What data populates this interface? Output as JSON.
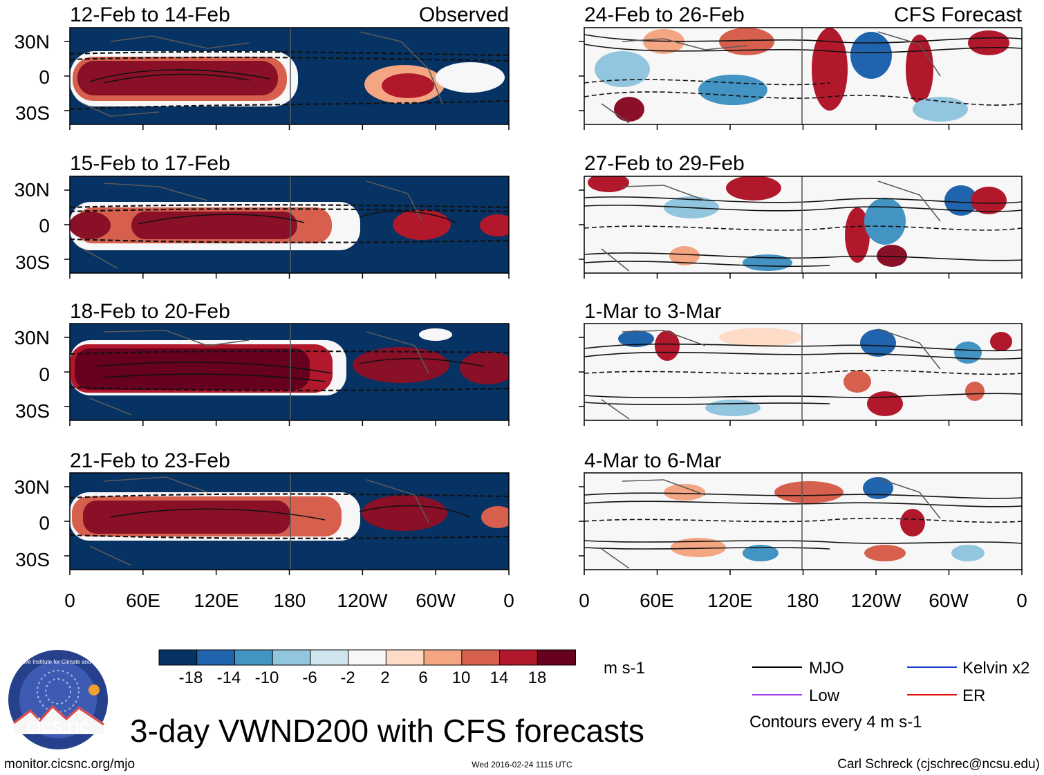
{
  "chart_data": {
    "type": "heatmap",
    "title": "3-day VWND200 with CFS forecasts",
    "units": "m s-1",
    "contour_note": "Contours every 4 m s-1",
    "panel_labels": {
      "observed": "Observed",
      "forecast": "CFS Forecast"
    },
    "x_ticks": [
      "0",
      "60E",
      "120E",
      "180",
      "120W",
      "60W",
      "0"
    ],
    "y_ticks": [
      "30N",
      "0",
      "30S"
    ],
    "colorbar": {
      "ticks": [
        "-18",
        "-14",
        "-10",
        "-6",
        "-2",
        "2",
        "6",
        "10",
        "14",
        "18"
      ],
      "colors": [
        "#063264",
        "#1f64ad",
        "#4393c3",
        "#92c5de",
        "#d1e5f0",
        "#f7f7f7",
        "#fddbc7",
        "#f4a582",
        "#d6604d",
        "#b2182b",
        "#67001f"
      ]
    },
    "legend": [
      {
        "label": "MJO",
        "color": "#000000"
      },
      {
        "label": "Kelvin x2",
        "color": "#1a3fd6"
      },
      {
        "label": "Low",
        "color": "#a040e0"
      },
      {
        "label": "ER",
        "color": "#e01010"
      }
    ],
    "panels": [
      {
        "id": "obs1",
        "period": "12-Feb to 14-Feb",
        "column": "observed",
        "band_mean": 12
      },
      {
        "id": "obs2",
        "period": "15-Feb to 17-Feb",
        "column": "observed",
        "band_mean": 10
      },
      {
        "id": "obs3",
        "period": "18-Feb to 20-Feb",
        "column": "observed",
        "band_mean": 16
      },
      {
        "id": "obs4",
        "period": "21-Feb to 23-Feb",
        "column": "observed",
        "band_mean": 14
      },
      {
        "id": "fc1",
        "period": "24-Feb to 26-Feb",
        "column": "forecast",
        "band_mean": 4
      },
      {
        "id": "fc2",
        "period": "27-Feb to 29-Feb",
        "column": "forecast",
        "band_mean": 4
      },
      {
        "id": "fc3",
        "period": "1-Mar to 3-Mar",
        "column": "forecast",
        "band_mean": 3
      },
      {
        "id": "fc4",
        "period": "4-Mar to 6-Mar",
        "column": "forecast",
        "band_mean": 3
      }
    ]
  },
  "logo": {
    "text": "cics.nc",
    "ring_text": "Cooperative Institute for Climate and Satellites"
  },
  "footer": {
    "url": "monitor.cicsnc.org/mjo",
    "timestamp": "Wed 2016-02-24 1115 UTC",
    "author": "Carl Schreck (cjschrec@ncsu.edu)"
  }
}
